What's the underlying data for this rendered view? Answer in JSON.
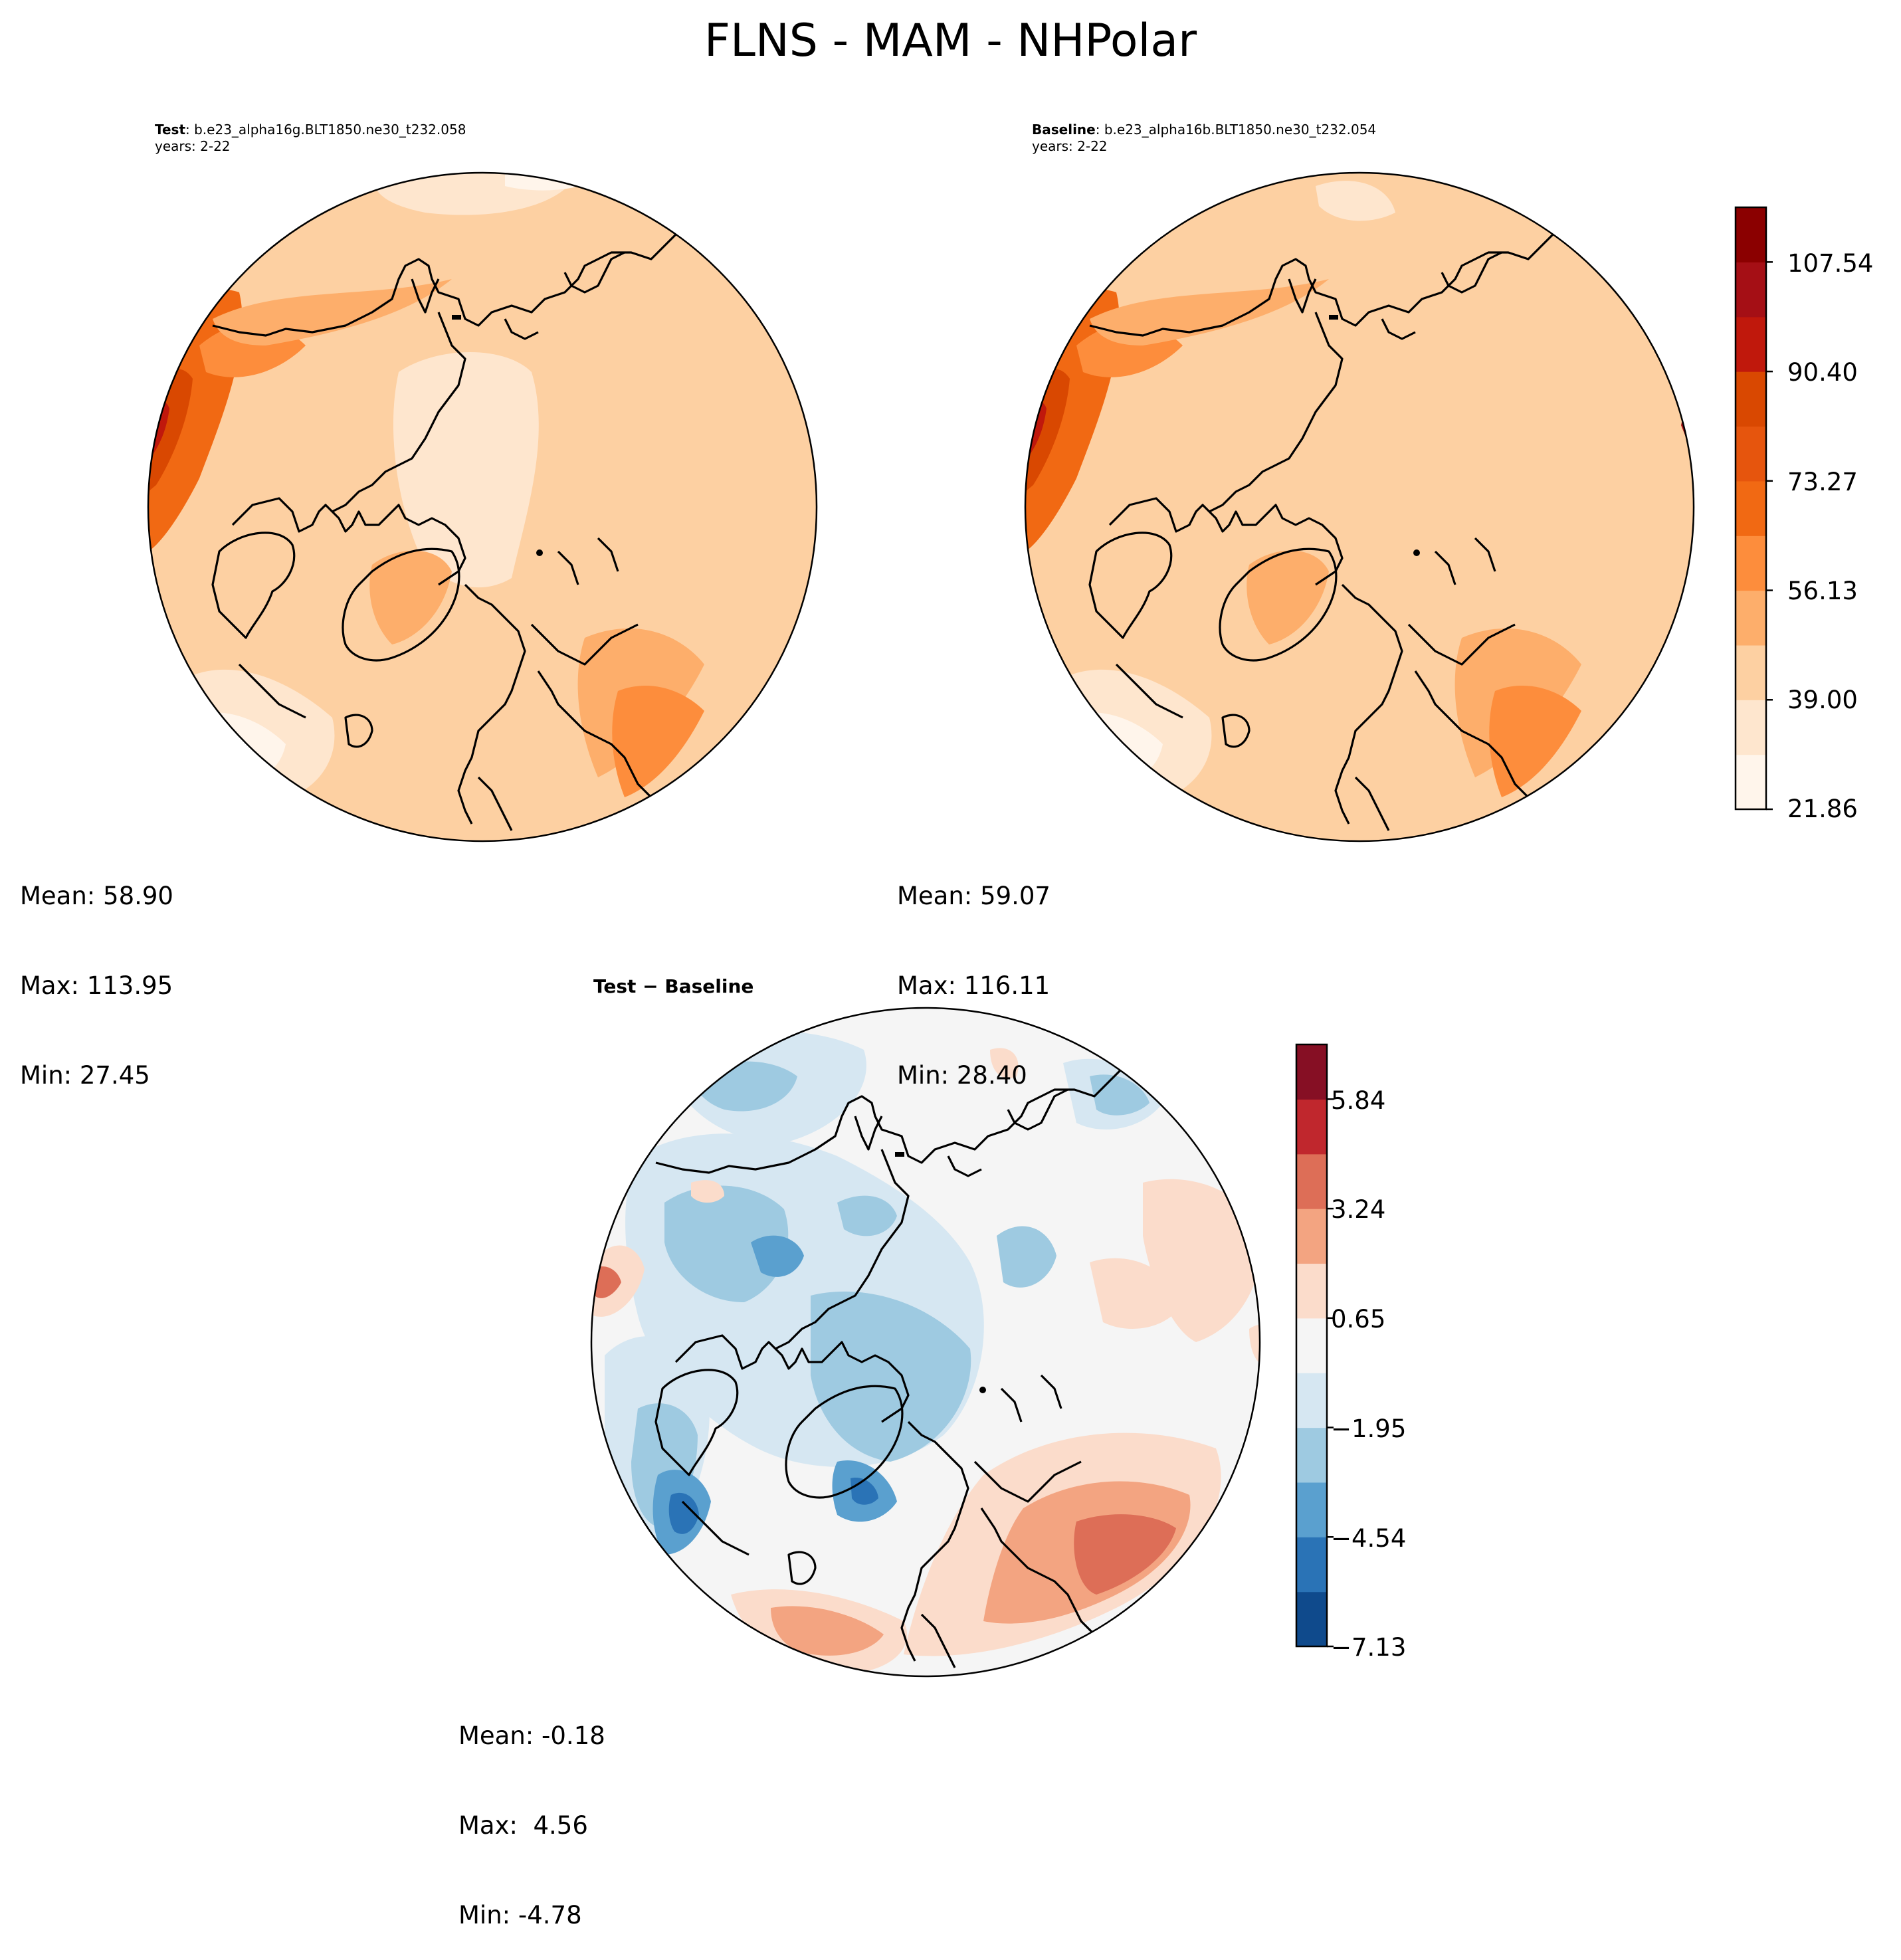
{
  "figure": {
    "title": "FLNS - MAM - NHPolar"
  },
  "panels": [
    {
      "id": "test",
      "label_bold": "Test",
      "label_rest": ": b.e23_alpha16g.BLT1850.ne30_t232.058",
      "years": "years: 2-22",
      "stats": {
        "mean": "Mean: 58.90",
        "max": "Max: 113.95",
        "min": "Min: 27.45"
      }
    },
    {
      "id": "baseline",
      "label_bold": "Baseline",
      "label_rest": ": b.e23_alpha16b.BLT1850.ne30_t232.054",
      "years": "years: 2-22",
      "stats": {
        "mean": "Mean: 59.07",
        "max": "Max: 116.11",
        "min": "Min: 28.40"
      }
    },
    {
      "id": "diff",
      "label_bold": "Test − Baseline",
      "stats": {
        "mean": "Mean: -0.18",
        "max": "Max:  4.56",
        "min": "Min: -4.78"
      }
    }
  ],
  "colorbars": {
    "main": {
      "ticks": [
        "21.86",
        "39.00",
        "56.13",
        "73.27",
        "90.40",
        "107.54"
      ],
      "colors": [
        "#fff5eb",
        "#fee6ce",
        "#fdd0a2",
        "#fdae6b",
        "#fd8d3c",
        "#f16913",
        "#e6550d",
        "#d94801",
        "#c0180c",
        "#a50f15",
        "#8b0000"
      ]
    },
    "diff": {
      "ticks": [
        "−7.13",
        "−4.54",
        "−1.95",
        "0.65",
        "3.24",
        "5.84"
      ],
      "colors": [
        "#0f4a8c",
        "#2a73b6",
        "#5aa0cf",
        "#9ecae1",
        "#d6e7f2",
        "#f5f5f5",
        "#fbdccb",
        "#f3a481",
        "#dd6e57",
        "#c0272d",
        "#860f24"
      ]
    }
  },
  "chart_data": [
    {
      "type": "heatmap",
      "title": "Test: b.e23_alpha16g.BLT1850.ne30_t232.058",
      "projection": "north polar stereographic",
      "field": "FLNS",
      "season": "MAM",
      "region": "NHPolar",
      "years": "2-22",
      "mean": 58.9,
      "max": 113.95,
      "min": 27.45,
      "levels": [
        21.86,
        39.0,
        56.13,
        73.27,
        90.4,
        107.54
      ]
    },
    {
      "type": "heatmap",
      "title": "Baseline: b.e23_alpha16b.BLT1850.ne30_t232.054",
      "projection": "north polar stereographic",
      "field": "FLNS",
      "season": "MAM",
      "region": "NHPolar",
      "years": "2-22",
      "mean": 59.07,
      "max": 116.11,
      "min": 28.4,
      "levels": [
        21.86,
        39.0,
        56.13,
        73.27,
        90.4,
        107.54
      ]
    },
    {
      "type": "heatmap",
      "title": "Test − Baseline",
      "projection": "north polar stereographic",
      "mean": -0.18,
      "max": 4.56,
      "min": -4.78,
      "levels": [
        -7.13,
        -4.54,
        -1.95,
        0.65,
        3.24,
        5.84
      ]
    }
  ]
}
